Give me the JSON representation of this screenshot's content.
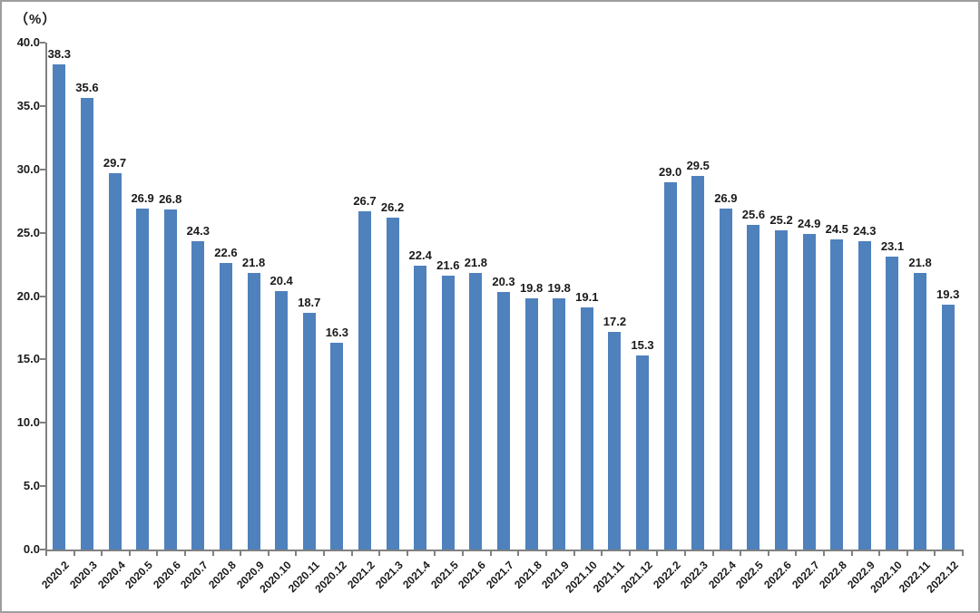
{
  "chart_data": {
    "type": "bar",
    "title": "",
    "unit_label": "（%）",
    "xlabel": "",
    "ylabel": "（%）",
    "categories": [
      "2020.2",
      "2020.3",
      "2020.4",
      "2020.5",
      "2020.6",
      "2020.7",
      "2020.8",
      "2020.9",
      "2020.10",
      "2020.11",
      "2020.12",
      "2021.2",
      "2021.3",
      "2021.4",
      "2021.5",
      "2021.6",
      "2021.7",
      "2021.8",
      "2021.9",
      "2021.10",
      "2021.11",
      "2021.12",
      "2022.2",
      "2022.3",
      "2022.4",
      "2022.5",
      "2022.6",
      "2022.7",
      "2022.8",
      "2022.9",
      "2022.10",
      "2022.11",
      "2022.12"
    ],
    "values": [
      38.3,
      35.6,
      29.7,
      26.9,
      26.8,
      24.3,
      22.6,
      21.8,
      20.4,
      18.7,
      16.3,
      26.7,
      26.2,
      22.4,
      21.6,
      21.8,
      20.3,
      19.8,
      19.8,
      19.1,
      17.2,
      15.3,
      29.0,
      29.5,
      26.9,
      25.6,
      25.2,
      24.9,
      24.5,
      24.3,
      23.1,
      21.8,
      19.3
    ],
    "ylim": [
      0,
      40
    ],
    "y_tick_step": 5,
    "y_tick_labels": [
      "0.0",
      "5.0",
      "10.0",
      "15.0",
      "20.0",
      "25.0",
      "30.0",
      "35.0",
      "40.0"
    ],
    "grid": "off",
    "legend": "none",
    "colors": {
      "bar": "#4F81BD",
      "axis": "#808080",
      "text": "#1A1A1A",
      "frame_border": "#9E9E9E",
      "background": "#FFFFFF"
    }
  }
}
